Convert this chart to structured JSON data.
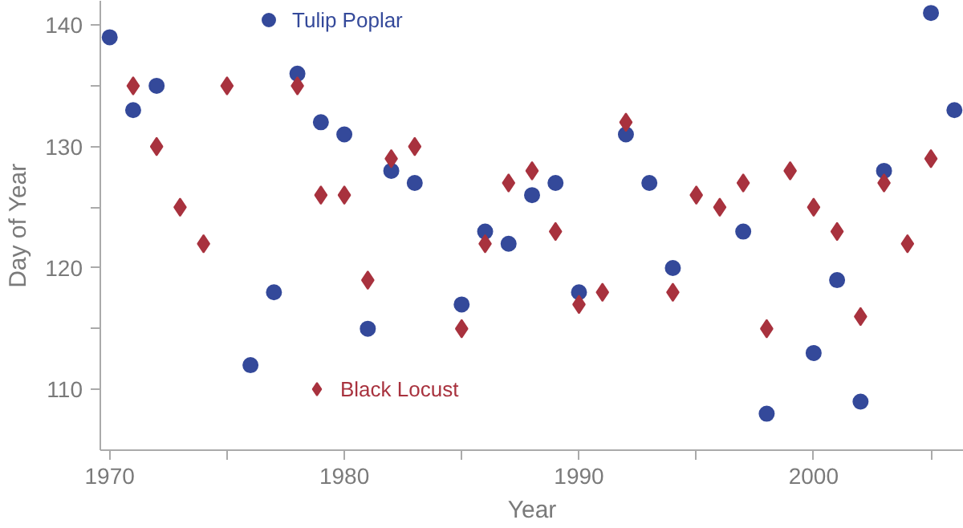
{
  "chart_data": {
    "type": "scatter",
    "xlabel": "Year",
    "ylabel": "Day of Year",
    "xlim": [
      1969.6,
      2006.4
    ],
    "ylim": [
      105,
      142
    ],
    "xticks": [
      1970,
      {
        "value": 1975,
        "label": null
      },
      1980,
      {
        "value": 1985,
        "label": null
      },
      1990,
      {
        "value": 1995,
        "label": null
      },
      2000,
      {
        "value": 2005,
        "label": null
      }
    ],
    "yticks": [
      110,
      {
        "value": 115,
        "label": null
      },
      120,
      {
        "value": 125,
        "label": null
      },
      130,
      {
        "value": 135,
        "label": null
      },
      140
    ],
    "grid": false,
    "legend": "top",
    "series": [
      {
        "name": "Tulip Poplar",
        "color": "#34499a",
        "marker": "circle",
        "x": [
          1970,
          1971,
          1972,
          1976,
          1977,
          1978,
          1979,
          1980,
          1981,
          1982,
          1983,
          1985,
          1986,
          1987,
          1988,
          1989,
          1990,
          1992,
          1993,
          1994,
          1997,
          1998,
          2000,
          2001,
          2002,
          2003,
          2005,
          2006
        ],
        "values": [
          139,
          133,
          135,
          112,
          118,
          136,
          132,
          131,
          115,
          128,
          127,
          117,
          123,
          122,
          126,
          127,
          118,
          131,
          127,
          120,
          123,
          108,
          113,
          119,
          109,
          128,
          141,
          133
        ]
      },
      {
        "name": "Black Locust",
        "color": "#a8323e",
        "marker": "diamond",
        "x": [
          1971,
          1972,
          1973,
          1974,
          1975,
          1978,
          1979,
          1980,
          1981,
          1982,
          1983,
          1985,
          1986,
          1987,
          1988,
          1989,
          1990,
          1991,
          1992,
          1994,
          1995,
          1996,
          1997,
          1998,
          1999,
          2000,
          2001,
          2002,
          2003,
          2004,
          2005
        ],
        "values": [
          135,
          130,
          125,
          122,
          135,
          135,
          126,
          126,
          119,
          129,
          130,
          115,
          122,
          127,
          128,
          123,
          117,
          118,
          132,
          118,
          126,
          125,
          127,
          115,
          128,
          125,
          123,
          116,
          127,
          122,
          129
        ]
      }
    ]
  }
}
